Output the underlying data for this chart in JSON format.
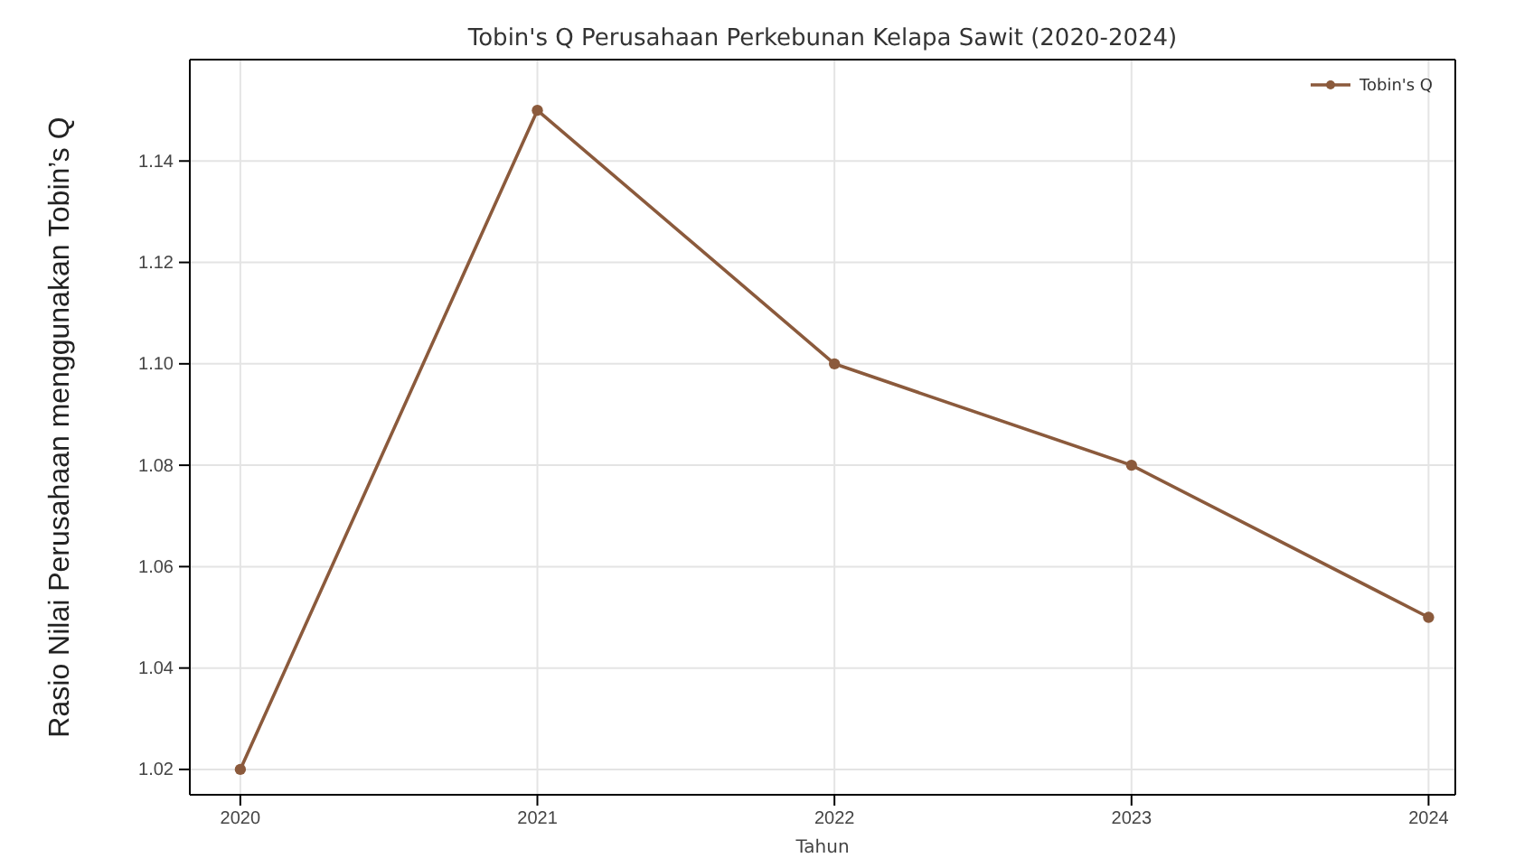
{
  "chart_data": {
    "type": "line",
    "title": "Tobin's Q Perusahaan Perkebunan Kelapa Sawit (2020-2024)",
    "xlabel": "Tahun",
    "ylabel": "Rasio Nilai Perusahaan menggunakan Tobin’s Q",
    "x": [
      2020,
      2021,
      2022,
      2023,
      2024
    ],
    "series": [
      {
        "name": "Tobin's Q",
        "color": "#8b5a3c",
        "values": [
          1.02,
          1.15,
          1.1,
          1.08,
          1.05
        ]
      }
    ],
    "xlim": [
      2019.83,
      2024.09
    ],
    "xticks": [
      2020,
      2021,
      2022,
      2023,
      2024
    ],
    "ylim": [
      1.015,
      1.16
    ],
    "yticks": [
      {
        "value": 1.02,
        "label": "1.02"
      },
      {
        "value": 1.04,
        "label": "1.04"
      },
      {
        "value": 1.06,
        "label": "1.06"
      },
      {
        "value": 1.08,
        "label": "1.08"
      },
      {
        "value": 1.1,
        "label": "1.10"
      },
      {
        "value": 1.12,
        "label": "1.12"
      },
      {
        "value": 1.14,
        "label": "1.14"
      }
    ],
    "grid": true,
    "legend": "top right",
    "marker": "circle",
    "line_style": "solid"
  }
}
